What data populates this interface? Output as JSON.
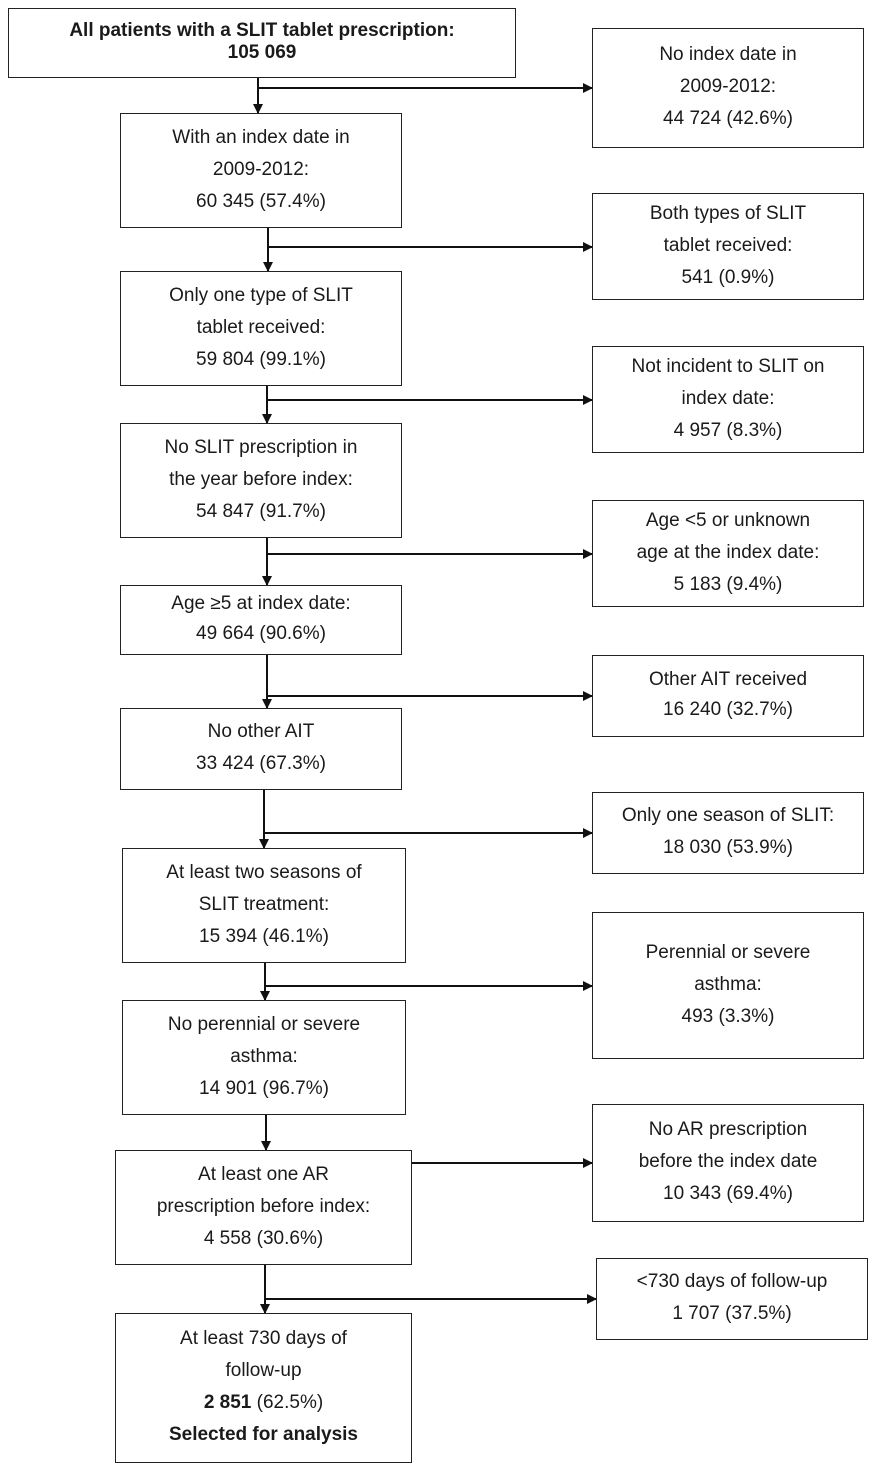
{
  "flowchart": {
    "main": [
      {
        "id": "m0",
        "lines": [
          {
            "text": "All patients with a SLIT tablet prescription:",
            "bold": true
          },
          {
            "text": "105 069",
            "bold": true
          }
        ]
      },
      {
        "id": "m1",
        "lines": [
          {
            "text": "With an index date in"
          },
          {
            "text": "2009-2012:"
          },
          {
            "text": "60 345 (57.4%)"
          }
        ]
      },
      {
        "id": "m2",
        "lines": [
          {
            "text": "Only one type of SLIT"
          },
          {
            "text": "tablet received:"
          },
          {
            "text": "59 804 (99.1%)"
          }
        ]
      },
      {
        "id": "m3",
        "lines": [
          {
            "text": "No SLIT prescription in"
          },
          {
            "text": "the year before index:"
          },
          {
            "text": "54 847 (91.7%)"
          }
        ]
      },
      {
        "id": "m4",
        "lines": [
          {
            "text": "Age ≥5 at index date:"
          },
          {
            "text": "49 664 (90.6%)"
          }
        ]
      },
      {
        "id": "m5",
        "lines": [
          {
            "text": "No other AIT"
          },
          {
            "text": "33 424 (67.3%)"
          }
        ]
      },
      {
        "id": "m6",
        "lines": [
          {
            "text": "At least two seasons of"
          },
          {
            "text": "SLIT treatment:"
          },
          {
            "text": "15 394 (46.1%)"
          }
        ]
      },
      {
        "id": "m7",
        "lines": [
          {
            "text": "No perennial or severe"
          },
          {
            "text": "asthma:"
          },
          {
            "text": "14 901 (96.7%)"
          }
        ]
      },
      {
        "id": "m8",
        "lines": [
          {
            "text": "At least one AR"
          },
          {
            "text": "prescription before index:"
          },
          {
            "text": "4 558 (30.6%)"
          }
        ]
      },
      {
        "id": "m9",
        "lines": [
          {
            "text": "At least 730 days of"
          },
          {
            "text": "follow-up"
          },
          {
            "bold_part": "2 851",
            "text": " (62.5%)"
          },
          {
            "text": "Selected for analysis",
            "bold": true
          }
        ]
      }
    ],
    "excluded": [
      {
        "id": "e0",
        "lines": [
          {
            "text": "No index date in"
          },
          {
            "text": "2009-2012:"
          },
          {
            "text": "44 724 (42.6%)"
          }
        ]
      },
      {
        "id": "e1",
        "lines": [
          {
            "text": "Both types of SLIT"
          },
          {
            "text": "tablet received:"
          },
          {
            "text": "541 (0.9%)"
          }
        ]
      },
      {
        "id": "e2",
        "lines": [
          {
            "text": "Not incident to SLIT on"
          },
          {
            "text": "index date:"
          },
          {
            "text": "4 957 (8.3%)"
          }
        ]
      },
      {
        "id": "e3",
        "lines": [
          {
            "text": "Age <5 or unknown"
          },
          {
            "text": "age at the index date:"
          },
          {
            "text": "5 183 (9.4%)"
          }
        ]
      },
      {
        "id": "e4",
        "lines": [
          {
            "text": "Other AIT received"
          },
          {
            "text": "16 240 (32.7%)"
          }
        ]
      },
      {
        "id": "e5",
        "lines": [
          {
            "text": "Only one season of SLIT:"
          },
          {
            "text": "18 030 (53.9%)"
          }
        ]
      },
      {
        "id": "e6",
        "lines": [
          {
            "text": "Perennial or severe"
          },
          {
            "text": "asthma:"
          },
          {
            "text": "493 (3.3%)"
          }
        ]
      },
      {
        "id": "e7",
        "lines": [
          {
            "text": "No AR prescription"
          },
          {
            "text": "before the index date"
          },
          {
            "text": "10 343 (69.4%)"
          }
        ]
      },
      {
        "id": "e8",
        "lines": [
          {
            "text": "<730 days of follow-up"
          },
          {
            "text": "1 707 (37.5%)"
          }
        ]
      }
    ]
  }
}
